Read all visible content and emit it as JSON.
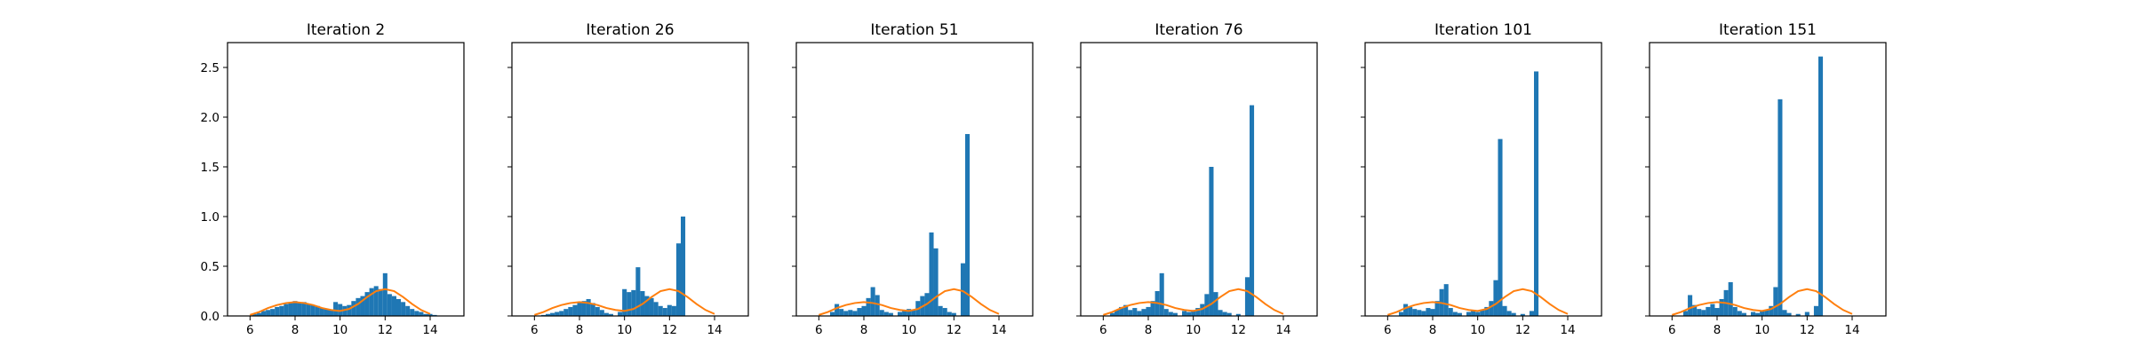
{
  "chart_data": {
    "type": "bar",
    "layout": "1x6 small multiples, shared y-axis",
    "xlim": [
      5.0,
      15.5
    ],
    "ylim": [
      0,
      2.75
    ],
    "xticks": [
      6,
      8,
      10,
      12,
      14
    ],
    "yticks": [
      0.0,
      0.5,
      1.0,
      1.5,
      2.0,
      2.5
    ],
    "grid": false,
    "colors": {
      "bars": "#1f77b4",
      "curve": "#ff7f0e",
      "axes": "#000000"
    },
    "curve": {
      "description": "reference density (mixture of two gaussians), same in all panels",
      "x": [
        6.0,
        6.4,
        6.8,
        7.2,
        7.6,
        8.0,
        8.4,
        8.8,
        9.2,
        9.6,
        10.0,
        10.4,
        10.8,
        11.2,
        11.6,
        12.0,
        12.4,
        12.8,
        13.2,
        13.6,
        14.0
      ],
      "y": [
        0.01,
        0.04,
        0.08,
        0.11,
        0.13,
        0.14,
        0.13,
        0.11,
        0.08,
        0.06,
        0.05,
        0.07,
        0.12,
        0.19,
        0.25,
        0.27,
        0.25,
        0.19,
        0.12,
        0.06,
        0.02
      ]
    },
    "panels": [
      {
        "title": "Iteration 2",
        "bars": [
          {
            "x": 6.2,
            "y": 0.02
          },
          {
            "x": 6.4,
            "y": 0.03
          },
          {
            "x": 6.6,
            "y": 0.05
          },
          {
            "x": 6.8,
            "y": 0.06
          },
          {
            "x": 7.0,
            "y": 0.07
          },
          {
            "x": 7.2,
            "y": 0.09
          },
          {
            "x": 7.4,
            "y": 0.1
          },
          {
            "x": 7.6,
            "y": 0.12
          },
          {
            "x": 7.8,
            "y": 0.13
          },
          {
            "x": 8.0,
            "y": 0.15
          },
          {
            "x": 8.2,
            "y": 0.13
          },
          {
            "x": 8.4,
            "y": 0.14
          },
          {
            "x": 8.6,
            "y": 0.12
          },
          {
            "x": 8.8,
            "y": 0.11
          },
          {
            "x": 9.0,
            "y": 0.1
          },
          {
            "x": 9.2,
            "y": 0.08
          },
          {
            "x": 9.4,
            "y": 0.07
          },
          {
            "x": 9.6,
            "y": 0.06
          },
          {
            "x": 9.8,
            "y": 0.14
          },
          {
            "x": 10.0,
            "y": 0.12
          },
          {
            "x": 10.2,
            "y": 0.1
          },
          {
            "x": 10.4,
            "y": 0.11
          },
          {
            "x": 10.6,
            "y": 0.15
          },
          {
            "x": 10.8,
            "y": 0.18
          },
          {
            "x": 11.0,
            "y": 0.2
          },
          {
            "x": 11.2,
            "y": 0.24
          },
          {
            "x": 11.4,
            "y": 0.28
          },
          {
            "x": 11.6,
            "y": 0.3
          },
          {
            "x": 11.8,
            "y": 0.27
          },
          {
            "x": 12.0,
            "y": 0.43
          },
          {
            "x": 12.2,
            "y": 0.22
          },
          {
            "x": 12.4,
            "y": 0.2
          },
          {
            "x": 12.6,
            "y": 0.17
          },
          {
            "x": 12.8,
            "y": 0.14
          },
          {
            "x": 13.0,
            "y": 0.1
          },
          {
            "x": 13.2,
            "y": 0.07
          },
          {
            "x": 13.4,
            "y": 0.05
          },
          {
            "x": 13.6,
            "y": 0.04
          },
          {
            "x": 13.8,
            "y": 0.02
          },
          {
            "x": 14.0,
            "y": 0.02
          },
          {
            "x": 14.2,
            "y": 0.01
          }
        ]
      },
      {
        "title": "Iteration 26",
        "bars": [
          {
            "x": 6.4,
            "y": 0.01
          },
          {
            "x": 6.6,
            "y": 0.02
          },
          {
            "x": 6.8,
            "y": 0.03
          },
          {
            "x": 7.0,
            "y": 0.04
          },
          {
            "x": 7.2,
            "y": 0.05
          },
          {
            "x": 7.4,
            "y": 0.07
          },
          {
            "x": 7.6,
            "y": 0.09
          },
          {
            "x": 7.8,
            "y": 0.11
          },
          {
            "x": 8.0,
            "y": 0.14
          },
          {
            "x": 8.2,
            "y": 0.15
          },
          {
            "x": 8.4,
            "y": 0.17
          },
          {
            "x": 8.6,
            "y": 0.13
          },
          {
            "x": 8.8,
            "y": 0.09
          },
          {
            "x": 9.0,
            "y": 0.06
          },
          {
            "x": 9.2,
            "y": 0.03
          },
          {
            "x": 9.4,
            "y": 0.02
          },
          {
            "x": 9.8,
            "y": 0.04
          },
          {
            "x": 10.0,
            "y": 0.27
          },
          {
            "x": 10.2,
            "y": 0.24
          },
          {
            "x": 10.4,
            "y": 0.26
          },
          {
            "x": 10.6,
            "y": 0.49
          },
          {
            "x": 10.8,
            "y": 0.25
          },
          {
            "x": 11.0,
            "y": 0.2
          },
          {
            "x": 11.2,
            "y": 0.18
          },
          {
            "x": 11.4,
            "y": 0.14
          },
          {
            "x": 11.6,
            "y": 0.1
          },
          {
            "x": 11.8,
            "y": 0.08
          },
          {
            "x": 12.0,
            "y": 0.11
          },
          {
            "x": 12.2,
            "y": 0.1
          },
          {
            "x": 12.4,
            "y": 0.73
          },
          {
            "x": 12.6,
            "y": 1.0
          }
        ]
      },
      {
        "title": "Iteration 51",
        "bars": [
          {
            "x": 6.6,
            "y": 0.04
          },
          {
            "x": 6.8,
            "y": 0.12
          },
          {
            "x": 7.0,
            "y": 0.07
          },
          {
            "x": 7.2,
            "y": 0.05
          },
          {
            "x": 7.4,
            "y": 0.06
          },
          {
            "x": 7.6,
            "y": 0.05
          },
          {
            "x": 7.8,
            "y": 0.08
          },
          {
            "x": 8.0,
            "y": 0.1
          },
          {
            "x": 8.2,
            "y": 0.18
          },
          {
            "x": 8.4,
            "y": 0.29
          },
          {
            "x": 8.6,
            "y": 0.21
          },
          {
            "x": 8.8,
            "y": 0.06
          },
          {
            "x": 9.0,
            "y": 0.04
          },
          {
            "x": 9.2,
            "y": 0.03
          },
          {
            "x": 9.6,
            "y": 0.04
          },
          {
            "x": 9.8,
            "y": 0.05
          },
          {
            "x": 10.0,
            "y": 0.07
          },
          {
            "x": 10.2,
            "y": 0.06
          },
          {
            "x": 10.4,
            "y": 0.15
          },
          {
            "x": 10.6,
            "y": 0.2
          },
          {
            "x": 10.8,
            "y": 0.23
          },
          {
            "x": 11.0,
            "y": 0.84
          },
          {
            "x": 11.2,
            "y": 0.68
          },
          {
            "x": 11.4,
            "y": 0.1
          },
          {
            "x": 11.6,
            "y": 0.08
          },
          {
            "x": 11.8,
            "y": 0.04
          },
          {
            "x": 12.0,
            "y": 0.03
          },
          {
            "x": 12.4,
            "y": 0.53
          },
          {
            "x": 12.6,
            "y": 1.83
          }
        ]
      },
      {
        "title": "Iteration 76",
        "bars": [
          {
            "x": 6.4,
            "y": 0.03
          },
          {
            "x": 6.6,
            "y": 0.06
          },
          {
            "x": 6.8,
            "y": 0.09
          },
          {
            "x": 7.0,
            "y": 0.11
          },
          {
            "x": 7.2,
            "y": 0.06
          },
          {
            "x": 7.4,
            "y": 0.08
          },
          {
            "x": 7.6,
            "y": 0.05
          },
          {
            "x": 7.8,
            "y": 0.07
          },
          {
            "x": 8.0,
            "y": 0.09
          },
          {
            "x": 8.2,
            "y": 0.15
          },
          {
            "x": 8.4,
            "y": 0.25
          },
          {
            "x": 8.6,
            "y": 0.43
          },
          {
            "x": 8.8,
            "y": 0.07
          },
          {
            "x": 9.0,
            "y": 0.04
          },
          {
            "x": 9.2,
            "y": 0.03
          },
          {
            "x": 9.6,
            "y": 0.05
          },
          {
            "x": 9.8,
            "y": 0.04
          },
          {
            "x": 10.0,
            "y": 0.06
          },
          {
            "x": 10.2,
            "y": 0.08
          },
          {
            "x": 10.4,
            "y": 0.12
          },
          {
            "x": 10.6,
            "y": 0.22
          },
          {
            "x": 10.8,
            "y": 1.5
          },
          {
            "x": 11.0,
            "y": 0.24
          },
          {
            "x": 11.2,
            "y": 0.06
          },
          {
            "x": 11.4,
            "y": 0.04
          },
          {
            "x": 11.6,
            "y": 0.03
          },
          {
            "x": 12.0,
            "y": 0.02
          },
          {
            "x": 12.4,
            "y": 0.39
          },
          {
            "x": 12.6,
            "y": 2.12
          }
        ]
      },
      {
        "title": "Iteration 101",
        "bars": [
          {
            "x": 6.6,
            "y": 0.04
          },
          {
            "x": 6.8,
            "y": 0.12
          },
          {
            "x": 7.0,
            "y": 0.09
          },
          {
            "x": 7.2,
            "y": 0.07
          },
          {
            "x": 7.4,
            "y": 0.06
          },
          {
            "x": 7.6,
            "y": 0.05
          },
          {
            "x": 7.8,
            "y": 0.08
          },
          {
            "x": 8.0,
            "y": 0.07
          },
          {
            "x": 8.2,
            "y": 0.15
          },
          {
            "x": 8.4,
            "y": 0.27
          },
          {
            "x": 8.6,
            "y": 0.32
          },
          {
            "x": 8.8,
            "y": 0.08
          },
          {
            "x": 9.0,
            "y": 0.04
          },
          {
            "x": 9.2,
            "y": 0.03
          },
          {
            "x": 9.6,
            "y": 0.04
          },
          {
            "x": 9.8,
            "y": 0.05
          },
          {
            "x": 10.0,
            "y": 0.04
          },
          {
            "x": 10.2,
            "y": 0.06
          },
          {
            "x": 10.4,
            "y": 0.09
          },
          {
            "x": 10.6,
            "y": 0.15
          },
          {
            "x": 10.8,
            "y": 0.36
          },
          {
            "x": 11.0,
            "y": 1.78
          },
          {
            "x": 11.2,
            "y": 0.1
          },
          {
            "x": 11.4,
            "y": 0.05
          },
          {
            "x": 11.6,
            "y": 0.03
          },
          {
            "x": 12.0,
            "y": 0.02
          },
          {
            "x": 12.4,
            "y": 0.05
          },
          {
            "x": 12.6,
            "y": 2.46
          }
        ]
      },
      {
        "title": "Iteration 151",
        "bars": [
          {
            "x": 6.6,
            "y": 0.05
          },
          {
            "x": 6.8,
            "y": 0.21
          },
          {
            "x": 7.0,
            "y": 0.11
          },
          {
            "x": 7.2,
            "y": 0.07
          },
          {
            "x": 7.4,
            "y": 0.06
          },
          {
            "x": 7.6,
            "y": 0.09
          },
          {
            "x": 7.8,
            "y": 0.12
          },
          {
            "x": 8.0,
            "y": 0.08
          },
          {
            "x": 8.2,
            "y": 0.17
          },
          {
            "x": 8.4,
            "y": 0.26
          },
          {
            "x": 8.6,
            "y": 0.34
          },
          {
            "x": 8.8,
            "y": 0.09
          },
          {
            "x": 9.0,
            "y": 0.05
          },
          {
            "x": 9.2,
            "y": 0.03
          },
          {
            "x": 9.6,
            "y": 0.04
          },
          {
            "x": 9.8,
            "y": 0.03
          },
          {
            "x": 10.0,
            "y": 0.05
          },
          {
            "x": 10.2,
            "y": 0.06
          },
          {
            "x": 10.4,
            "y": 0.1
          },
          {
            "x": 10.6,
            "y": 0.29
          },
          {
            "x": 10.8,
            "y": 2.18
          },
          {
            "x": 11.0,
            "y": 0.06
          },
          {
            "x": 11.2,
            "y": 0.03
          },
          {
            "x": 11.6,
            "y": 0.02
          },
          {
            "x": 12.0,
            "y": 0.04
          },
          {
            "x": 12.4,
            "y": 0.1
          },
          {
            "x": 12.6,
            "y": 2.61
          }
        ]
      }
    ]
  }
}
